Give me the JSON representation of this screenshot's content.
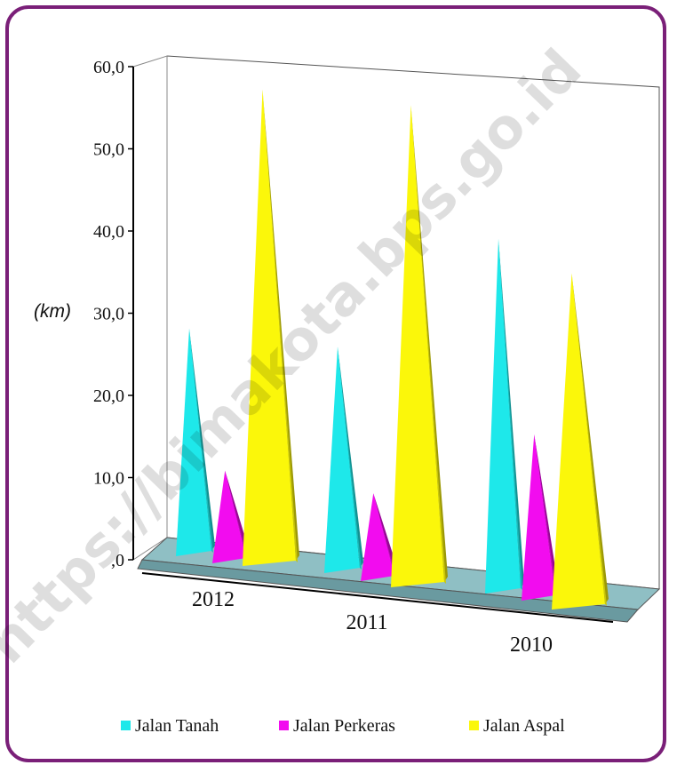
{
  "chart_data": {
    "type": "bar",
    "bar_shape": "3d-pyramid",
    "categories": [
      "2012",
      "2011",
      "2010"
    ],
    "series": [
      {
        "name": "Jalan Tanah",
        "color": "#1ee8ea",
        "values": [
          28.0,
          26.5,
          40.5
        ]
      },
      {
        "name": "Jalan Perkeras",
        "color": "#f20cef",
        "values": [
          11.0,
          9.0,
          17.0
        ]
      },
      {
        "name": "Jalan Aspal",
        "color": "#fbf70a",
        "values": [
          57.5,
          56.5,
          37.0
        ]
      }
    ],
    "ylabel": "(km)",
    "ylim": [
      0,
      60
    ],
    "yticks": [
      ",0",
      "10,0",
      "20,0",
      "30,0",
      "40,0",
      "50,0",
      "60,0"
    ],
    "legend_position": "bottom",
    "watermark": "https://bimakota.bps.go.id"
  }
}
